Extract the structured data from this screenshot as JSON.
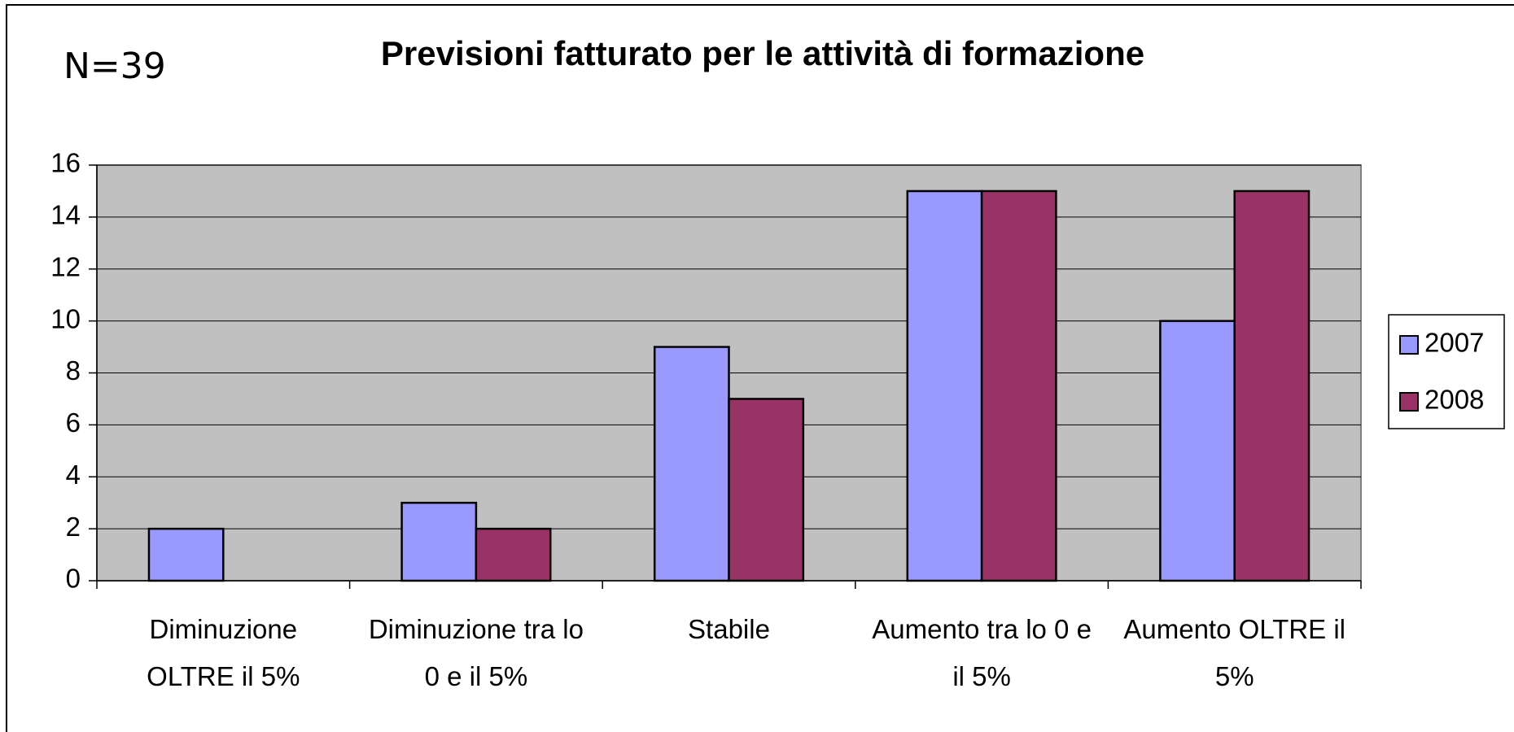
{
  "chart_data": {
    "type": "bar",
    "title": "Previsioni fatturato per le attività di formazione",
    "annotation": "N=39",
    "categories": [
      "Diminuzione OLTRE il 5%",
      "Diminuzione tra lo 0 e il 5%",
      "Stabile",
      "Aumento tra lo 0 e il 5%",
      "Aumento OLTRE il 5%"
    ],
    "series": [
      {
        "name": "2007",
        "color": "#9999ff",
        "values": [
          2,
          3,
          9,
          15,
          10
        ]
      },
      {
        "name": "2008",
        "color": "#993366",
        "values": [
          0,
          2,
          7,
          15,
          15
        ]
      }
    ],
    "ylim": [
      0,
      16
    ],
    "yticks": [
      0,
      2,
      4,
      6,
      8,
      10,
      12,
      14,
      16
    ],
    "grid": true,
    "legend": "right"
  }
}
